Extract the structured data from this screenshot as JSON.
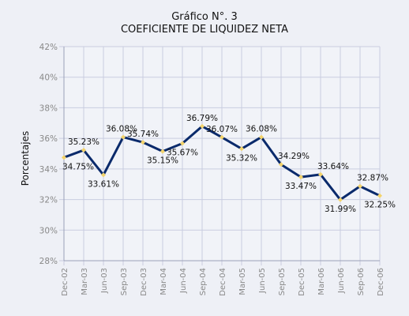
{
  "chart_data": {
    "type": "line",
    "title": "Gráfico N°. 3",
    "subtitle": "COEFICIENTE DE LIQUIDEZ NETA",
    "ylabel": "Porcentajes",
    "xlabel": "",
    "ylim": [
      28,
      42
    ],
    "yticks": [
      "28%",
      "30%",
      "32%",
      "34%",
      "36%",
      "38%",
      "40%",
      "42%"
    ],
    "grid": true,
    "categories": [
      "Dec-02",
      "Mar-03",
      "Jun-03",
      "Sep-03",
      "Dec-03",
      "Mar-04",
      "Jun-04",
      "Sep-04",
      "Dec-04",
      "Mar-05",
      "Jun-05",
      "Sep-05",
      "Dec-05",
      "Mar-06",
      "Jun-06",
      "Sep-06",
      "Dec-06"
    ],
    "values": [
      34.75,
      35.23,
      33.61,
      36.08,
      35.74,
      35.15,
      35.67,
      36.79,
      36.07,
      35.32,
      36.08,
      34.29,
      33.47,
      33.64,
      31.99,
      32.87,
      32.25
    ],
    "labels": [
      "34.75%",
      "35.23%",
      "33.61%",
      "36.08%",
      "35.74%",
      "35.15%",
      "35.67%",
      "36.79%",
      "36.07%",
      "35.32%",
      "36.08%",
      "34.29%",
      "33.47%",
      "33.64%",
      "31.99%",
      "32.87%",
      "32.25%"
    ],
    "colors": {
      "line": "#0a2a6b",
      "marker": "#f3d36b",
      "grid": "#c9cde0",
      "background": "#eef0f6"
    }
  }
}
